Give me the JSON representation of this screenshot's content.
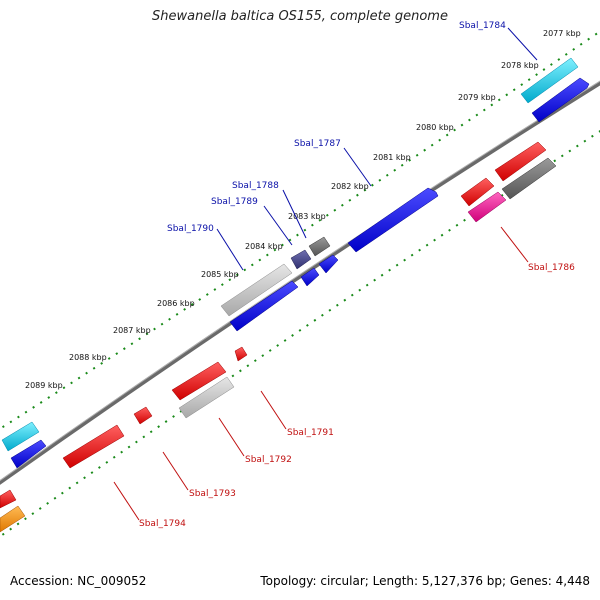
{
  "header": {
    "title": "Shewanella baltica OS155, complete genome"
  },
  "footer": {
    "accession": "Accession: NC_009052",
    "summary": "Topology: circular; Length: 5,127,376 bp; Genes: 4,448"
  },
  "scale_labels": [
    "2077 kbp",
    "2078 kbp",
    "2079 kbp",
    "2080 kbp",
    "2081 kbp",
    "2082 kbp",
    "2083 kbp",
    "2084 kbp",
    "2085 kbp",
    "2086 kbp",
    "2087 kbp",
    "2088 kbp",
    "2089 kbp"
  ],
  "genes_forward": [
    "Sbal_1784",
    "Sbal_1787",
    "Sbal_1788",
    "Sbal_1789",
    "Sbal_1790"
  ],
  "genes_reverse": [
    "Sbal_1786",
    "Sbal_1791",
    "Sbal_1792",
    "Sbal_1793",
    "Sbal_1794"
  ],
  "colors": {
    "backbone": "#808080",
    "scale_ticks": "#1a8a1a",
    "blue": "#0000e6",
    "cyan": "#00c8e6",
    "red": "#e60000",
    "gray": "#6e6e6e",
    "light_gray": "#bdbdbd",
    "magenta": "#e6108c",
    "navy": "#404080",
    "orange": "#f08c00"
  }
}
